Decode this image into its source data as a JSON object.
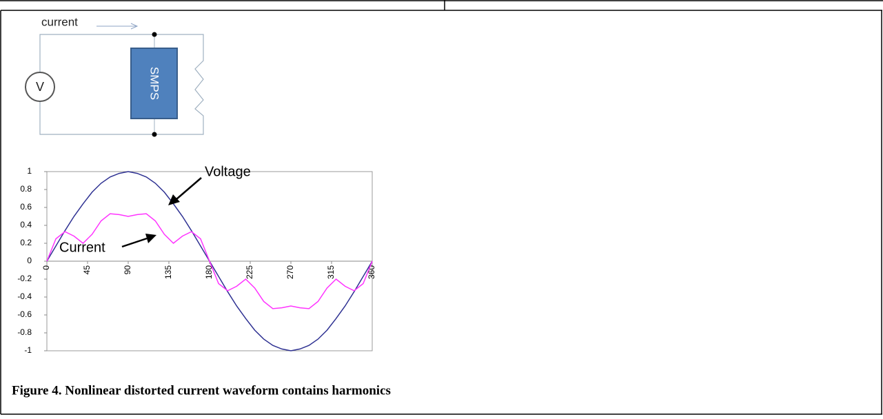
{
  "diagram": {
    "current_label": "current",
    "source_label": "V",
    "load_label": "SMPS"
  },
  "chart_data": {
    "type": "line",
    "x": [
      0,
      10,
      20,
      30,
      40,
      50,
      60,
      70,
      80,
      90,
      100,
      110,
      120,
      130,
      140,
      150,
      160,
      170,
      180,
      190,
      200,
      210,
      220,
      230,
      240,
      250,
      260,
      270,
      280,
      290,
      300,
      310,
      320,
      330,
      340,
      350,
      360
    ],
    "series": [
      {
        "name": "Voltage",
        "color": "#2e3192",
        "values": [
          0,
          0.17,
          0.34,
          0.5,
          0.64,
          0.77,
          0.87,
          0.94,
          0.98,
          1,
          0.98,
          0.94,
          0.87,
          0.77,
          0.64,
          0.5,
          0.34,
          0.17,
          0,
          -0.17,
          -0.34,
          -0.5,
          -0.64,
          -0.77,
          -0.87,
          -0.94,
          -0.98,
          -1,
          -0.98,
          -0.94,
          -0.87,
          -0.77,
          -0.64,
          -0.5,
          -0.34,
          -0.17,
          0
        ]
      },
      {
        "name": "Current",
        "color": "#ff33ff",
        "values": [
          0,
          0.25,
          0.33,
          0.28,
          0.2,
          0.3,
          0.45,
          0.53,
          0.52,
          0.5,
          0.52,
          0.53,
          0.45,
          0.3,
          0.2,
          0.28,
          0.33,
          0.25,
          0,
          -0.25,
          -0.33,
          -0.28,
          -0.2,
          -0.3,
          -0.45,
          -0.53,
          -0.52,
          -0.5,
          -0.52,
          -0.53,
          -0.45,
          -0.3,
          -0.2,
          -0.28,
          -0.33,
          -0.25,
          0
        ]
      }
    ],
    "xlim": [
      0,
      360
    ],
    "xticks": [
      0,
      45,
      90,
      135,
      180,
      225,
      270,
      315,
      360
    ],
    "ylim": [
      -1,
      1
    ],
    "yticks": [
      -1,
      -0.8,
      -0.6,
      -0.4,
      -0.2,
      0,
      0.2,
      0.4,
      0.6,
      0.8,
      1
    ],
    "grid": false
  },
  "caption": "Figure 4. Nonlinear distorted current waveform contains harmonics"
}
